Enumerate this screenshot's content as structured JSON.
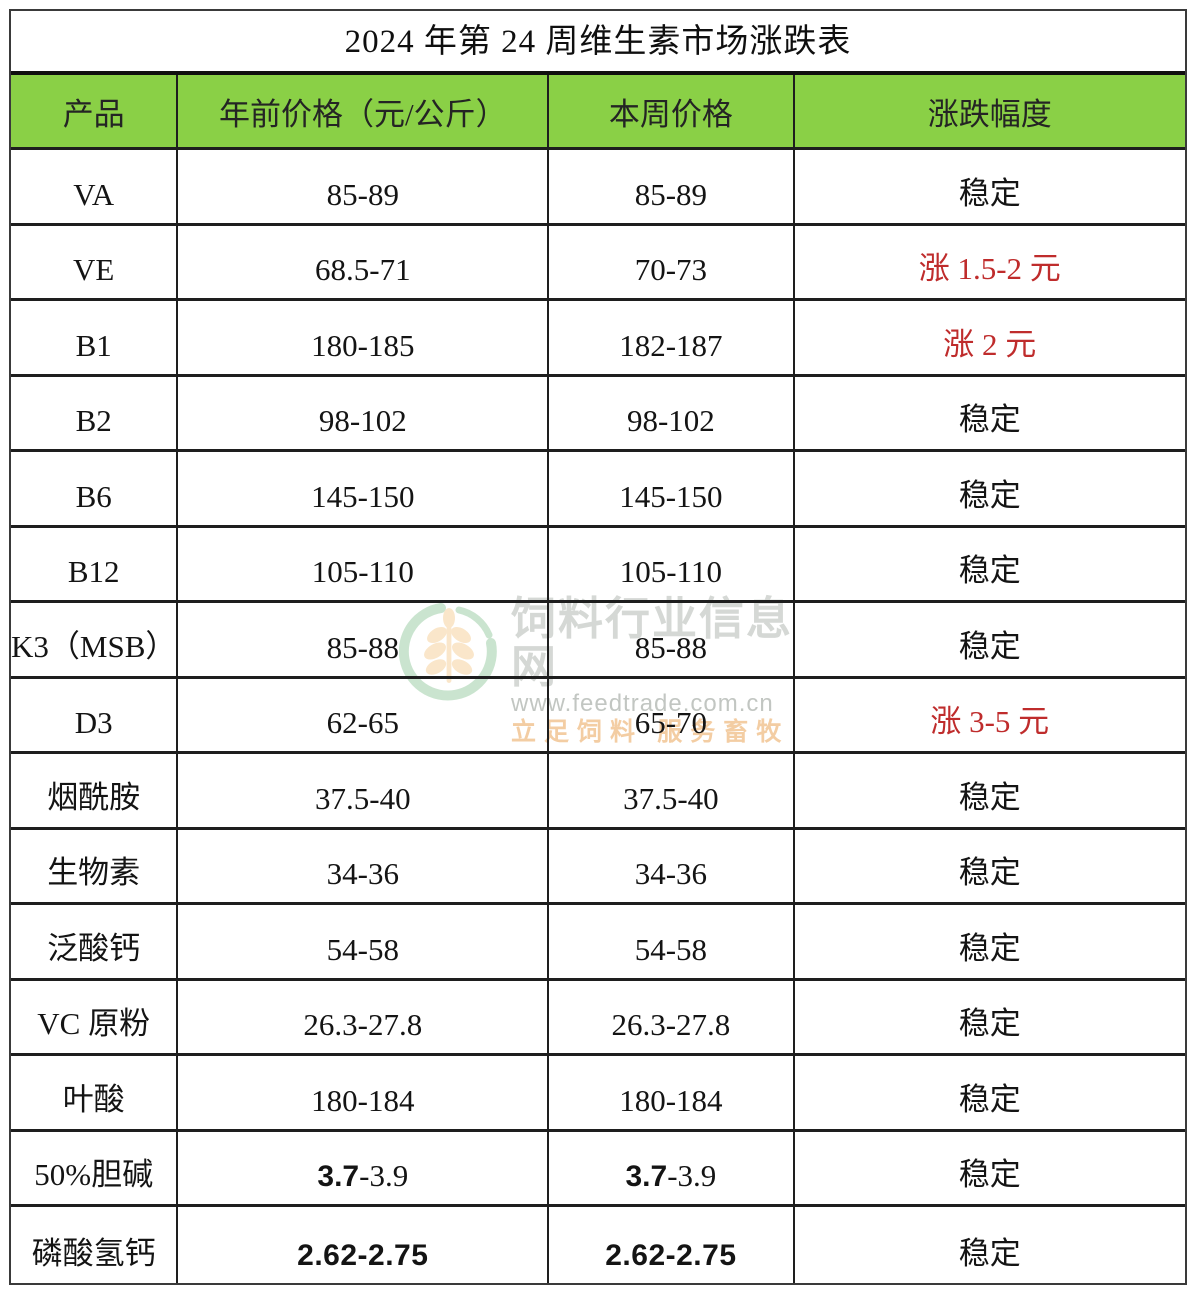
{
  "table": {
    "title": "2024 年第 24 周维生素市场涨跌表",
    "columns": [
      "产品",
      "年前价格（元/公斤）",
      "本周价格",
      "涨跌幅度"
    ],
    "rows": [
      {
        "product": "VA",
        "prev": "85-89",
        "current": "85-89",
        "change": "稳定",
        "change_type": "stable"
      },
      {
        "product": "VE",
        "prev": "68.5-71",
        "current": "70-73",
        "change": "涨 1.5-2 元",
        "change_type": "up"
      },
      {
        "product": "B1",
        "prev": "180-185",
        "current": "182-187",
        "change": "涨 2 元",
        "change_type": "up"
      },
      {
        "product": "B2",
        "prev": "98-102",
        "current": "98-102",
        "change": "稳定",
        "change_type": "stable"
      },
      {
        "product": "B6",
        "prev": "145-150",
        "current": "145-150",
        "change": "稳定",
        "change_type": "stable"
      },
      {
        "product": "B12",
        "prev": "105-110",
        "current": "105-110",
        "change": "稳定",
        "change_type": "stable"
      },
      {
        "product": "K3（MSB）",
        "prev": "85-88",
        "current": "85-88",
        "change": "稳定",
        "change_type": "stable"
      },
      {
        "product": "D3",
        "prev": "62-65",
        "current": "65-70",
        "change": "涨 3-5 元",
        "change_type": "up"
      },
      {
        "product": "烟酰胺",
        "prev": "37.5-40",
        "current": "37.5-40",
        "change": "稳定",
        "change_type": "stable"
      },
      {
        "product": "生物素",
        "prev": "34-36",
        "current": "34-36",
        "change": "稳定",
        "change_type": "stable"
      },
      {
        "product": "泛酸钙",
        "prev": "54-58",
        "current": "54-58",
        "change": "稳定",
        "change_type": "stable"
      },
      {
        "product": "VC 原粉",
        "prev": "26.3-27.8",
        "current": "26.3-27.8",
        "change": "稳定",
        "change_type": "stable"
      },
      {
        "product": "叶酸",
        "prev": "180-184",
        "current": "180-184",
        "change": "稳定",
        "change_type": "stable"
      },
      {
        "product": "50%胆碱",
        "prev": "3.7-3.9",
        "current": "3.7-3.9",
        "change": "稳定",
        "change_type": "stable",
        "price_style": "mixed",
        "prev_parts": [
          "3.7",
          "-3.9"
        ],
        "current_parts": [
          "3.7",
          "-3.9"
        ]
      },
      {
        "product": "磷酸氢钙",
        "prev": "2.62-2.75",
        "current": "2.62-2.75",
        "change": "稳定",
        "change_type": "stable",
        "price_style": "sans"
      }
    ]
  },
  "watermark": {
    "site_name": "饲料行业信息网",
    "url": "www.feedtrade.com.cn",
    "slogan": "立足饲料 服务畜牧",
    "logo": "wheat-circle-logo"
  },
  "colors": {
    "header_green": "#8ad046",
    "up_red": "#bf2c2c",
    "border_black": "#1e1e1e",
    "watermark_gray": "#c7ccc7",
    "watermark_orange": "#f0bd85"
  },
  "chart_data": {
    "type": "table",
    "title": "2024 年第 24 周维生素市场涨跌表",
    "columns": [
      "产品",
      "年前价格（元/公斤）",
      "本周价格",
      "涨跌幅度"
    ],
    "rows": [
      [
        "VA",
        "85-89",
        "85-89",
        "稳定"
      ],
      [
        "VE",
        "68.5-71",
        "70-73",
        "涨 1.5-2 元"
      ],
      [
        "B1",
        "180-185",
        "182-187",
        "涨 2 元"
      ],
      [
        "B2",
        "98-102",
        "98-102",
        "稳定"
      ],
      [
        "B6",
        "145-150",
        "145-150",
        "稳定"
      ],
      [
        "B12",
        "105-110",
        "105-110",
        "稳定"
      ],
      [
        "K3（MSB）",
        "85-88",
        "85-88",
        "稳定"
      ],
      [
        "D3",
        "62-65",
        "65-70",
        "涨 3-5 元"
      ],
      [
        "烟酰胺",
        "37.5-40",
        "37.5-40",
        "稳定"
      ],
      [
        "生物素",
        "34-36",
        "34-36",
        "稳定"
      ],
      [
        "泛酸钙",
        "54-58",
        "54-58",
        "稳定"
      ],
      [
        "VC 原粉",
        "26.3-27.8",
        "26.3-27.8",
        "稳定"
      ],
      [
        "叶酸",
        "180-184",
        "180-184",
        "稳定"
      ],
      [
        "50%胆碱",
        "3.7-3.9",
        "3.7-3.9",
        "稳定"
      ],
      [
        "磷酸氢钙",
        "2.62-2.75",
        "2.62-2.75",
        "稳定"
      ]
    ]
  }
}
